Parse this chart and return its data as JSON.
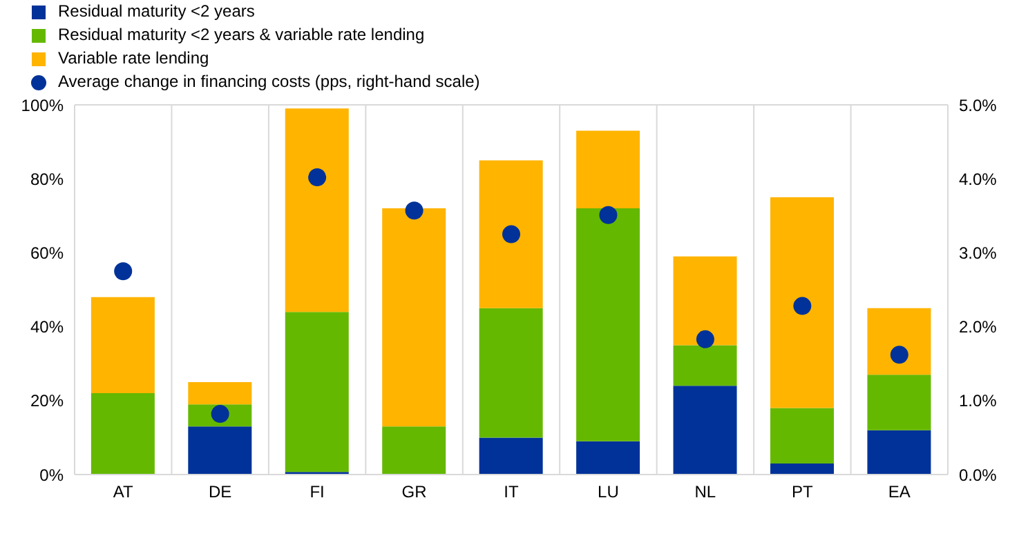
{
  "chart_data": {
    "type": "bar",
    "stacked": true,
    "categories": [
      "AT",
      "DE",
      "FI",
      "GR",
      "IT",
      "LU",
      "NL",
      "PT",
      "EA"
    ],
    "series": [
      {
        "name": "Residual maturity <2 years",
        "color": "#003299",
        "values": [
          0,
          13,
          0.7,
          0,
          10,
          9,
          24,
          3,
          12
        ]
      },
      {
        "name": "Residual maturity <2 years & variable rate lending",
        "color": "#65b800",
        "values": [
          22,
          6,
          43.3,
          13,
          35,
          63,
          11,
          15,
          15
        ]
      },
      {
        "name": "Variable rate lending",
        "color": "#ffb400",
        "values": [
          26,
          6,
          55,
          59,
          40,
          21,
          24,
          57,
          18
        ]
      },
      {
        "name": "Average change in financing costs (pps, right-hand scale)",
        "type": "scatter",
        "axis": "y2",
        "marker": "circle",
        "color": "#003299",
        "values": [
          2.75,
          0.82,
          4.02,
          3.57,
          3.25,
          3.51,
          1.83,
          2.28,
          1.62
        ]
      }
    ],
    "ylim": [
      0,
      100
    ],
    "yticks": [
      {
        "value": 0,
        "label": "0%"
      },
      {
        "value": 20,
        "label": "20%"
      },
      {
        "value": 40,
        "label": "40%"
      },
      {
        "value": 60,
        "label": "60%"
      },
      {
        "value": 80,
        "label": "80%"
      },
      {
        "value": 100,
        "label": "100%"
      }
    ],
    "y2lim": [
      0,
      5
    ],
    "y2ticks": [
      {
        "value": 0,
        "label": "0.0%"
      },
      {
        "value": 1,
        "label": "1.0%"
      },
      {
        "value": 2,
        "label": "2.0%"
      },
      {
        "value": 3,
        "label": "3.0%"
      },
      {
        "value": 4,
        "label": "4.0%"
      },
      {
        "value": 5,
        "label": "5.0%"
      }
    ],
    "grid": true,
    "legend": "top left"
  }
}
